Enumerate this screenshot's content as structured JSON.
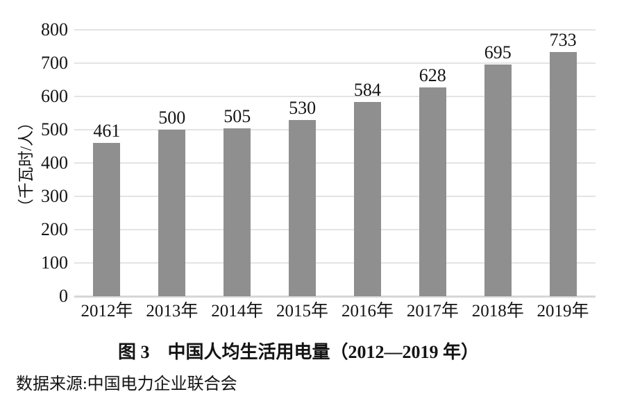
{
  "chart_data": {
    "type": "bar",
    "title": "图 3　中国人均生活用电量（2012—2019 年）",
    "categories": [
      "2012年",
      "2013年",
      "2014年",
      "2015年",
      "2016年",
      "2017年",
      "2018年",
      "2019年"
    ],
    "values": [
      461,
      500,
      505,
      530,
      584,
      628,
      695,
      733
    ],
    "xlabel": "",
    "ylabel": "（千瓦时/人）",
    "ylim": [
      0,
      800
    ],
    "yticks": [
      0,
      100,
      200,
      300,
      400,
      500,
      600,
      700,
      800
    ],
    "grid": "horizontal",
    "legend": "none",
    "data_labels": true,
    "source": "数据来源:中国电力企业联合会",
    "colors": {
      "bar": "#8f8f8f",
      "gridline": "#e4e4e4",
      "axis_line": "#d6d6d6",
      "text": "#141414",
      "background": "#ffffff"
    }
  }
}
